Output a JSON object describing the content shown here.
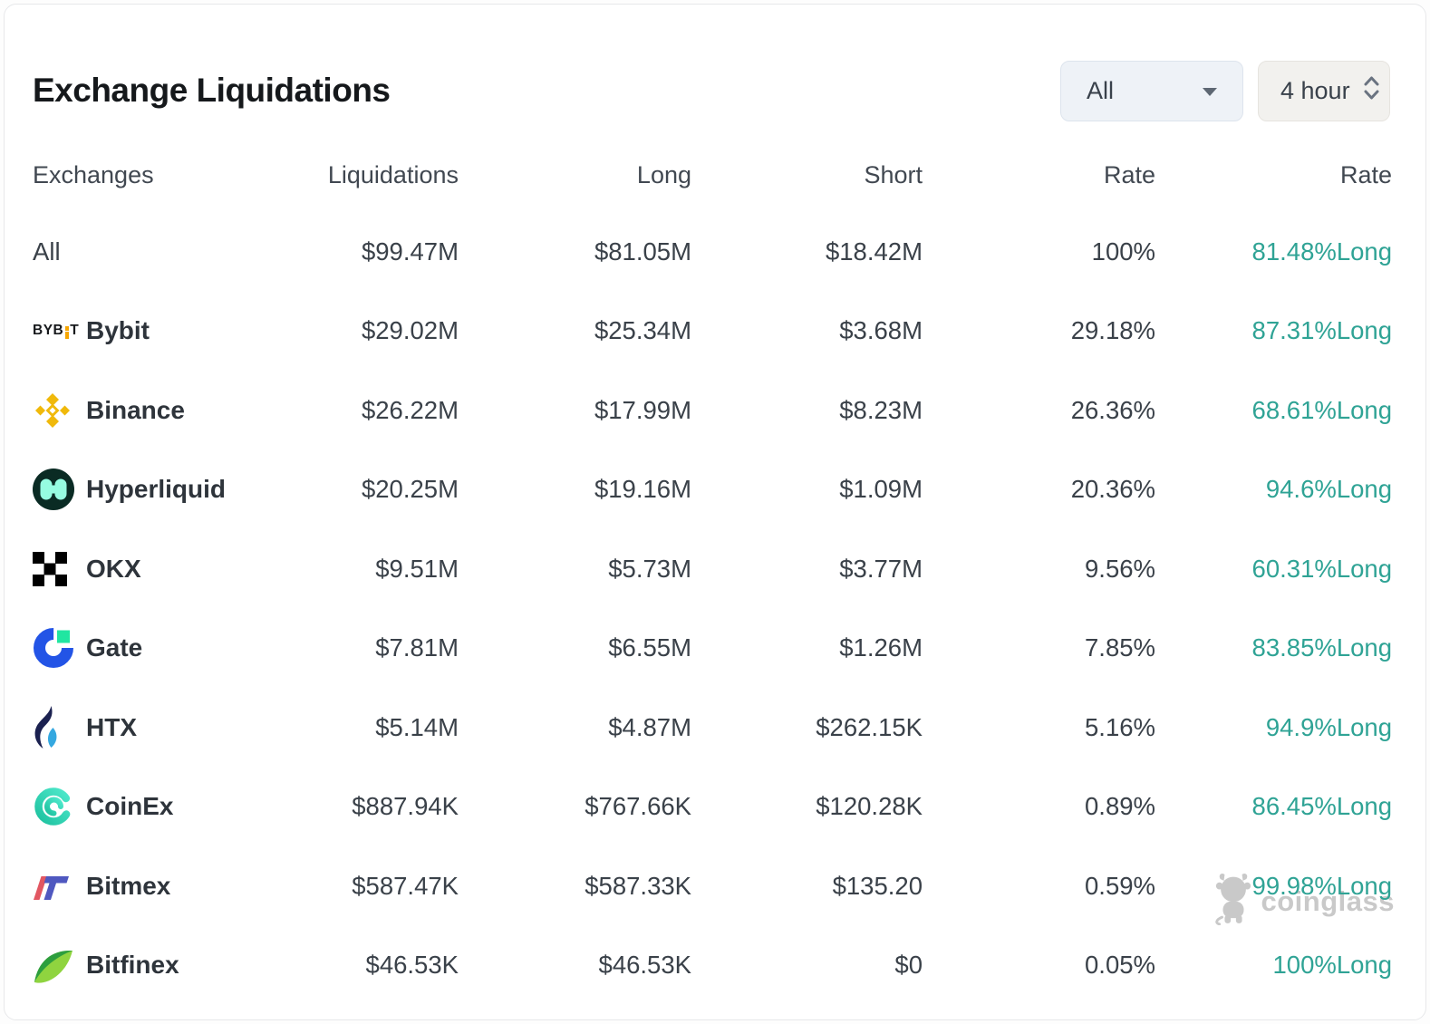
{
  "header": {
    "title": "Exchange Liquidations",
    "symbol_select": {
      "value": "All",
      "icon": "caret-down-icon"
    },
    "interval_select": {
      "value": "4 hour",
      "icon": "updown-chevrons-icon"
    }
  },
  "table": {
    "headers": [
      "Exchanges",
      "Liquidations",
      "Long",
      "Short",
      "Rate",
      "Rate"
    ],
    "rows": [
      {
        "name": "All",
        "icon": "",
        "liquidations": "$99.47M",
        "long": "$81.05M",
        "short": "$18.42M",
        "rate": "100%",
        "long_rate": "81.48%Long"
      },
      {
        "name": "Bybit",
        "icon": "bybit-logo",
        "liquidations": "$29.02M",
        "long": "$25.34M",
        "short": "$3.68M",
        "rate": "29.18%",
        "long_rate": "87.31%Long"
      },
      {
        "name": "Binance",
        "icon": "binance-logo",
        "liquidations": "$26.22M",
        "long": "$17.99M",
        "short": "$8.23M",
        "rate": "26.36%",
        "long_rate": "68.61%Long"
      },
      {
        "name": "Hyperliquid",
        "icon": "hyperliquid-logo",
        "liquidations": "$20.25M",
        "long": "$19.16M",
        "short": "$1.09M",
        "rate": "20.36%",
        "long_rate": "94.6%Long"
      },
      {
        "name": "OKX",
        "icon": "okx-logo",
        "liquidations": "$9.51M",
        "long": "$5.73M",
        "short": "$3.77M",
        "rate": "9.56%",
        "long_rate": "60.31%Long"
      },
      {
        "name": "Gate",
        "icon": "gate-logo",
        "liquidations": "$7.81M",
        "long": "$6.55M",
        "short": "$1.26M",
        "rate": "7.85%",
        "long_rate": "83.85%Long"
      },
      {
        "name": "HTX",
        "icon": "htx-logo",
        "liquidations": "$5.14M",
        "long": "$4.87M",
        "short": "$262.15K",
        "rate": "5.16%",
        "long_rate": "94.9%Long"
      },
      {
        "name": "CoinEx",
        "icon": "coinex-logo",
        "liquidations": "$887.94K",
        "long": "$767.66K",
        "short": "$120.28K",
        "rate": "0.89%",
        "long_rate": "86.45%Long"
      },
      {
        "name": "Bitmex",
        "icon": "bitmex-logo",
        "liquidations": "$587.47K",
        "long": "$587.33K",
        "short": "$135.20",
        "rate": "0.59%",
        "long_rate": "99.98%Long"
      },
      {
        "name": "Bitfinex",
        "icon": "bitfinex-logo",
        "liquidations": "$46.53K",
        "long": "$46.53K",
        "short": "$0",
        "rate": "0.05%",
        "long_rate": "100%Long"
      }
    ]
  },
  "watermark": {
    "brand": "coinglass",
    "icon": "coinglass-bull-icon"
  },
  "colors": {
    "accent_long": "#2fa395",
    "bybit_orange": "#f7a600",
    "binance_yellow": "#f0b90b",
    "gate_blue": "#2354e6",
    "gate_green": "#21e6a1",
    "hyperliquid_mint": "#96fce1"
  }
}
